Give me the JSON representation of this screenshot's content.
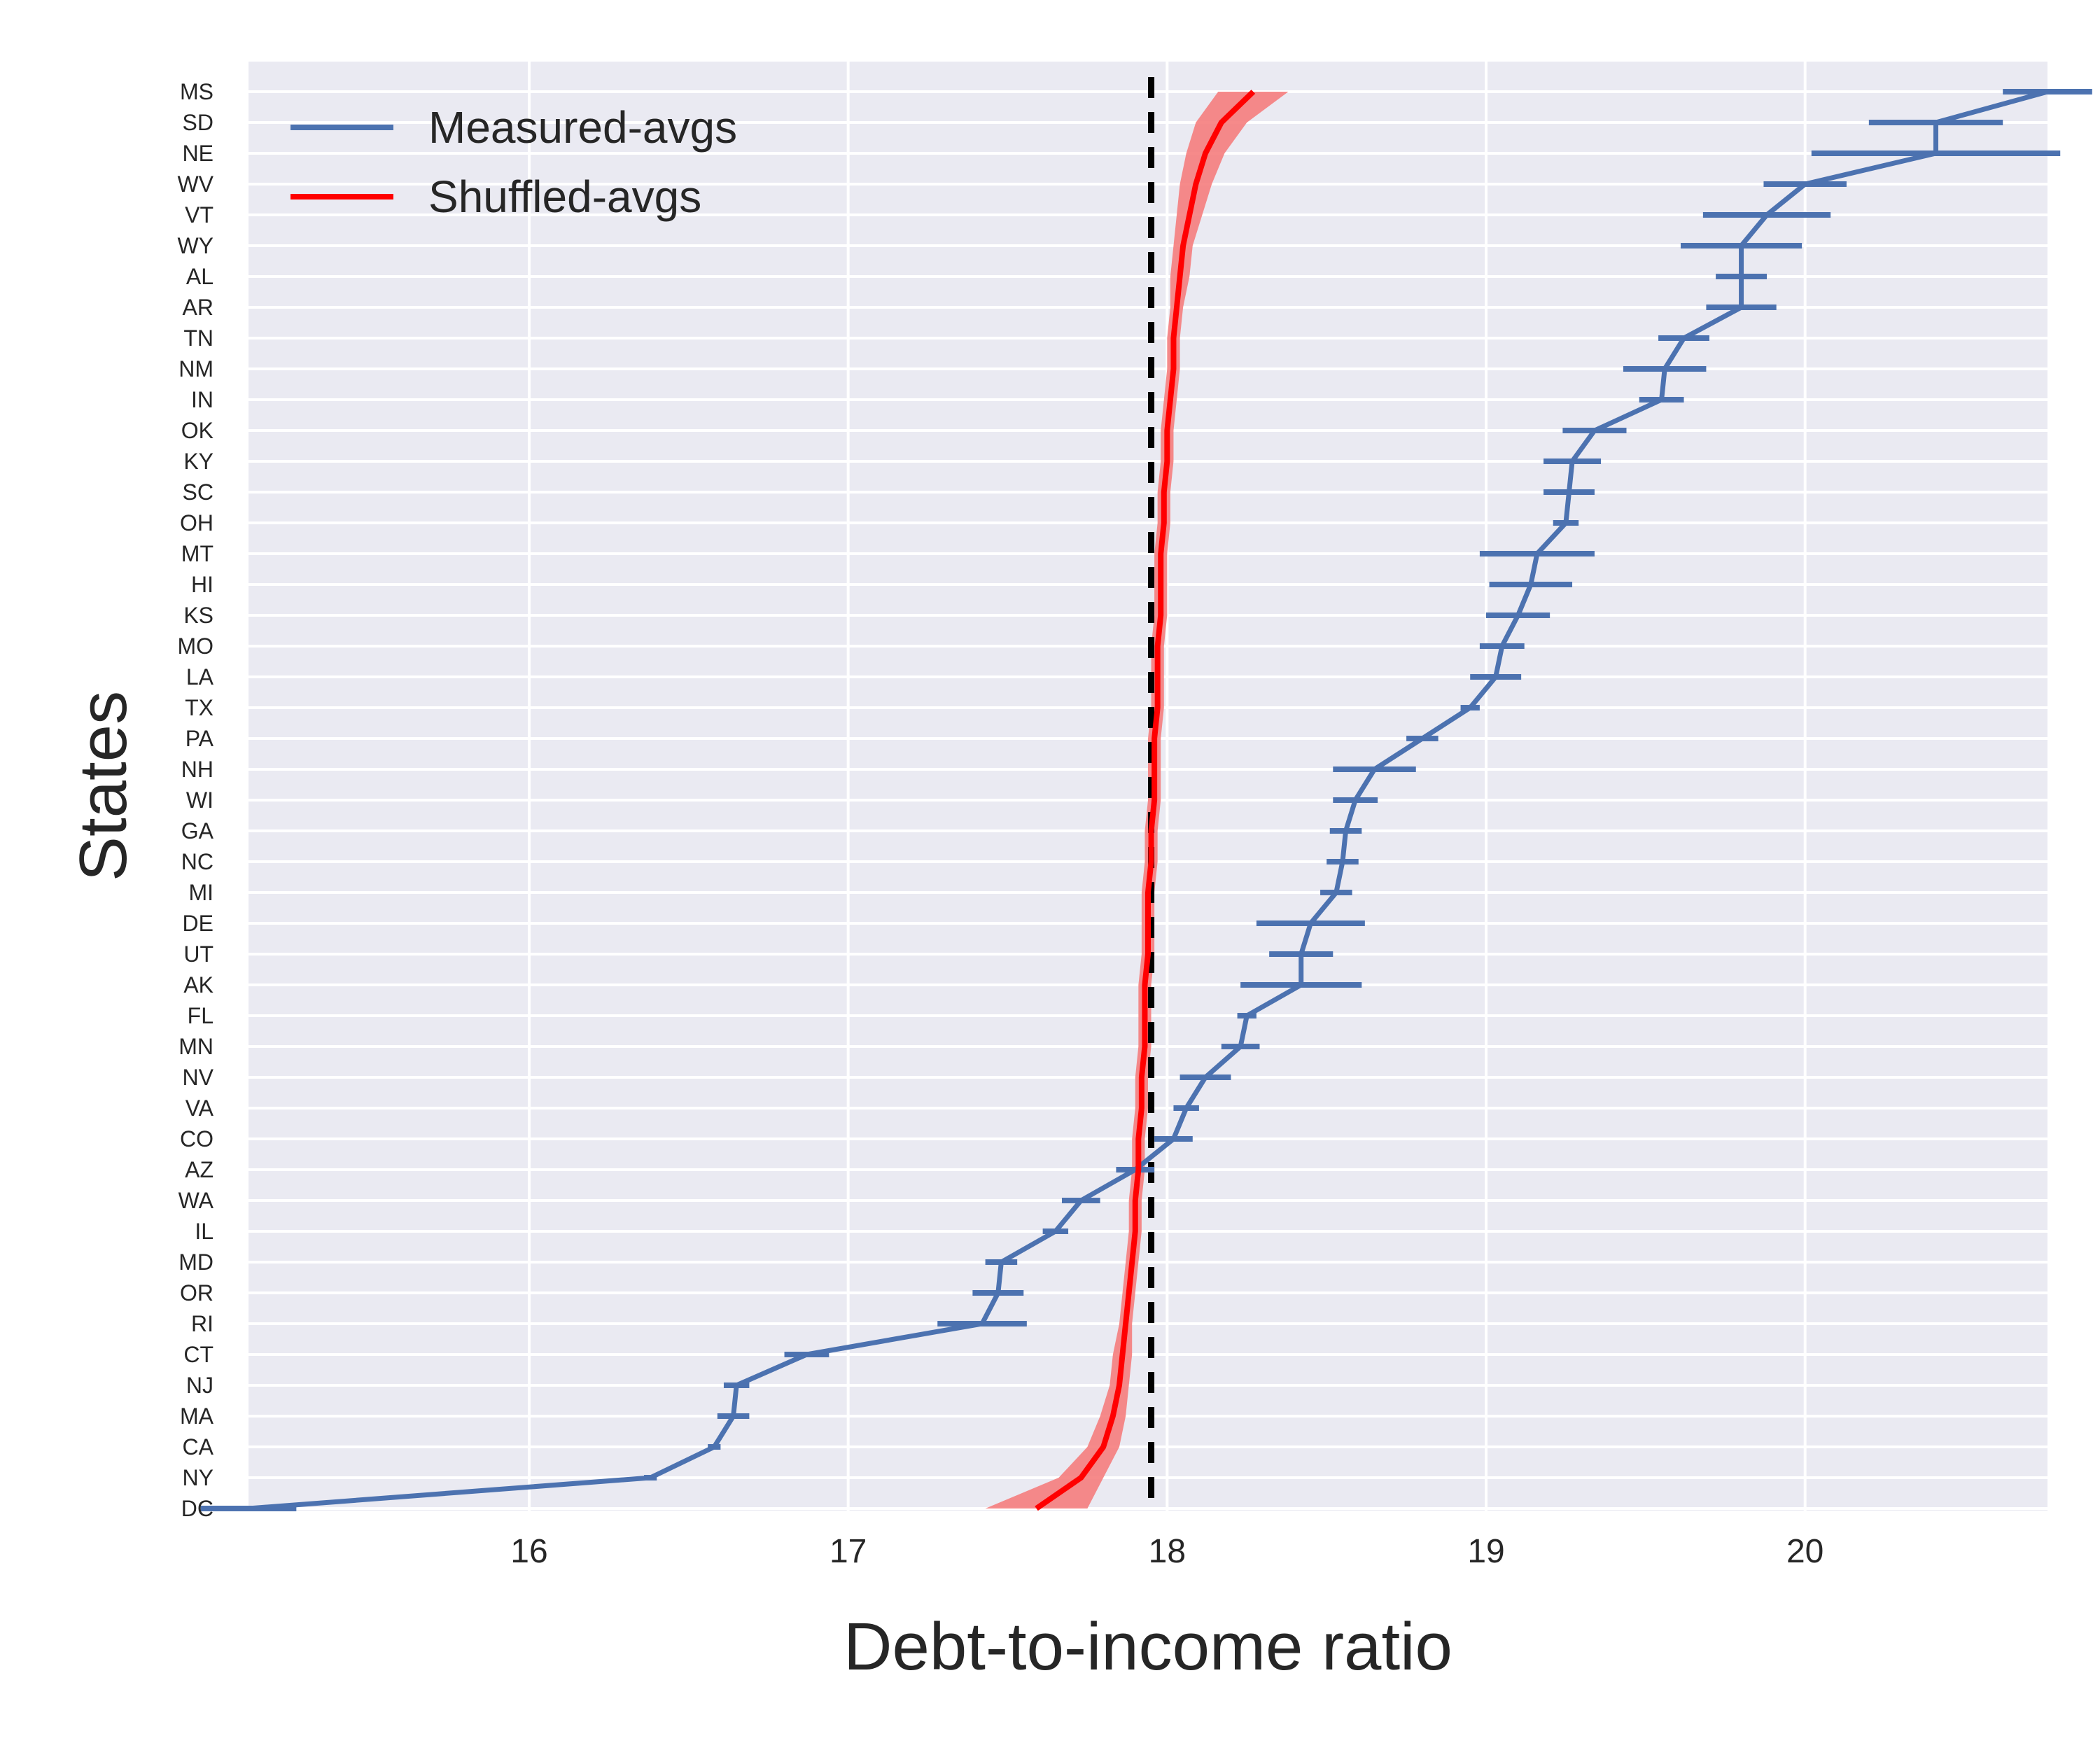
{
  "chart_data": {
    "type": "line",
    "xlabel": "Debt-to-income ratio",
    "ylabel": "States",
    "xlim": [
      15.12,
      20.76
    ],
    "x_ticks": [
      16,
      17,
      18,
      19,
      20
    ],
    "reference_line_x": 17.95,
    "grid": true,
    "legend_position": "top-left",
    "categories": [
      "MS",
      "SD",
      "NE",
      "WV",
      "VT",
      "WY",
      "AL",
      "AR",
      "TN",
      "NM",
      "IN",
      "OK",
      "KY",
      "SC",
      "OH",
      "MT",
      "HI",
      "KS",
      "MO",
      "LA",
      "TX",
      "PA",
      "NH",
      "WI",
      "GA",
      "NC",
      "MI",
      "DE",
      "UT",
      "AK",
      "FL",
      "MN",
      "NV",
      "VA",
      "CO",
      "AZ",
      "WA",
      "IL",
      "MD",
      "OR",
      "RI",
      "CT",
      "NJ",
      "MA",
      "CA",
      "NY",
      "DC"
    ],
    "series": [
      {
        "name": "Measured-avgs",
        "color": "#4c72b0",
        "values": [
          20.76,
          20.41,
          20.41,
          20.0,
          19.88,
          19.8,
          19.8,
          19.8,
          19.62,
          19.56,
          19.55,
          19.34,
          19.27,
          19.26,
          19.25,
          19.16,
          19.14,
          19.1,
          19.05,
          19.03,
          18.95,
          18.8,
          18.65,
          18.59,
          18.56,
          18.55,
          18.53,
          18.45,
          18.42,
          18.42,
          18.25,
          18.23,
          18.12,
          18.06,
          18.02,
          17.9,
          17.73,
          17.65,
          17.48,
          17.47,
          17.42,
          16.87,
          16.65,
          16.64,
          16.58,
          16.38,
          15.12
        ],
        "error": [
          0.14,
          0.21,
          0.39,
          0.13,
          0.2,
          0.19,
          0.08,
          0.11,
          0.08,
          0.13,
          0.07,
          0.1,
          0.09,
          0.08,
          0.04,
          0.18,
          0.13,
          0.1,
          0.07,
          0.08,
          0.03,
          0.05,
          0.13,
          0.07,
          0.05,
          0.05,
          0.05,
          0.17,
          0.1,
          0.19,
          0.03,
          0.06,
          0.08,
          0.04,
          0.06,
          0.06,
          0.06,
          0.04,
          0.05,
          0.08,
          0.14,
          0.07,
          0.04,
          0.05,
          0.02,
          0.02,
          0.15
        ]
      },
      {
        "name": "Shuffled-avgs",
        "color": "#ff0000",
        "band_color": "#f57d7d",
        "values": [
          18.27,
          18.17,
          18.12,
          18.09,
          18.07,
          18.05,
          18.04,
          18.03,
          18.02,
          18.02,
          18.01,
          18.0,
          18.0,
          17.99,
          17.99,
          17.98,
          17.98,
          17.98,
          17.97,
          17.97,
          17.97,
          17.96,
          17.96,
          17.96,
          17.95,
          17.95,
          17.94,
          17.94,
          17.94,
          17.93,
          17.93,
          17.93,
          17.92,
          17.92,
          17.91,
          17.91,
          17.9,
          17.9,
          17.89,
          17.88,
          17.87,
          17.86,
          17.85,
          17.83,
          17.8,
          17.73,
          17.59
        ],
        "band_width": [
          0.11,
          0.08,
          0.06,
          0.05,
          0.04,
          0.03,
          0.03,
          0.02,
          0.02,
          0.02,
          0.02,
          0.02,
          0.02,
          0.02,
          0.02,
          0.02,
          0.02,
          0.02,
          0.02,
          0.02,
          0.02,
          0.02,
          0.02,
          0.02,
          0.02,
          0.02,
          0.02,
          0.02,
          0.02,
          0.02,
          0.02,
          0.02,
          0.02,
          0.02,
          0.02,
          0.02,
          0.02,
          0.02,
          0.02,
          0.02,
          0.02,
          0.03,
          0.03,
          0.04,
          0.05,
          0.07,
          0.16
        ]
      }
    ]
  }
}
